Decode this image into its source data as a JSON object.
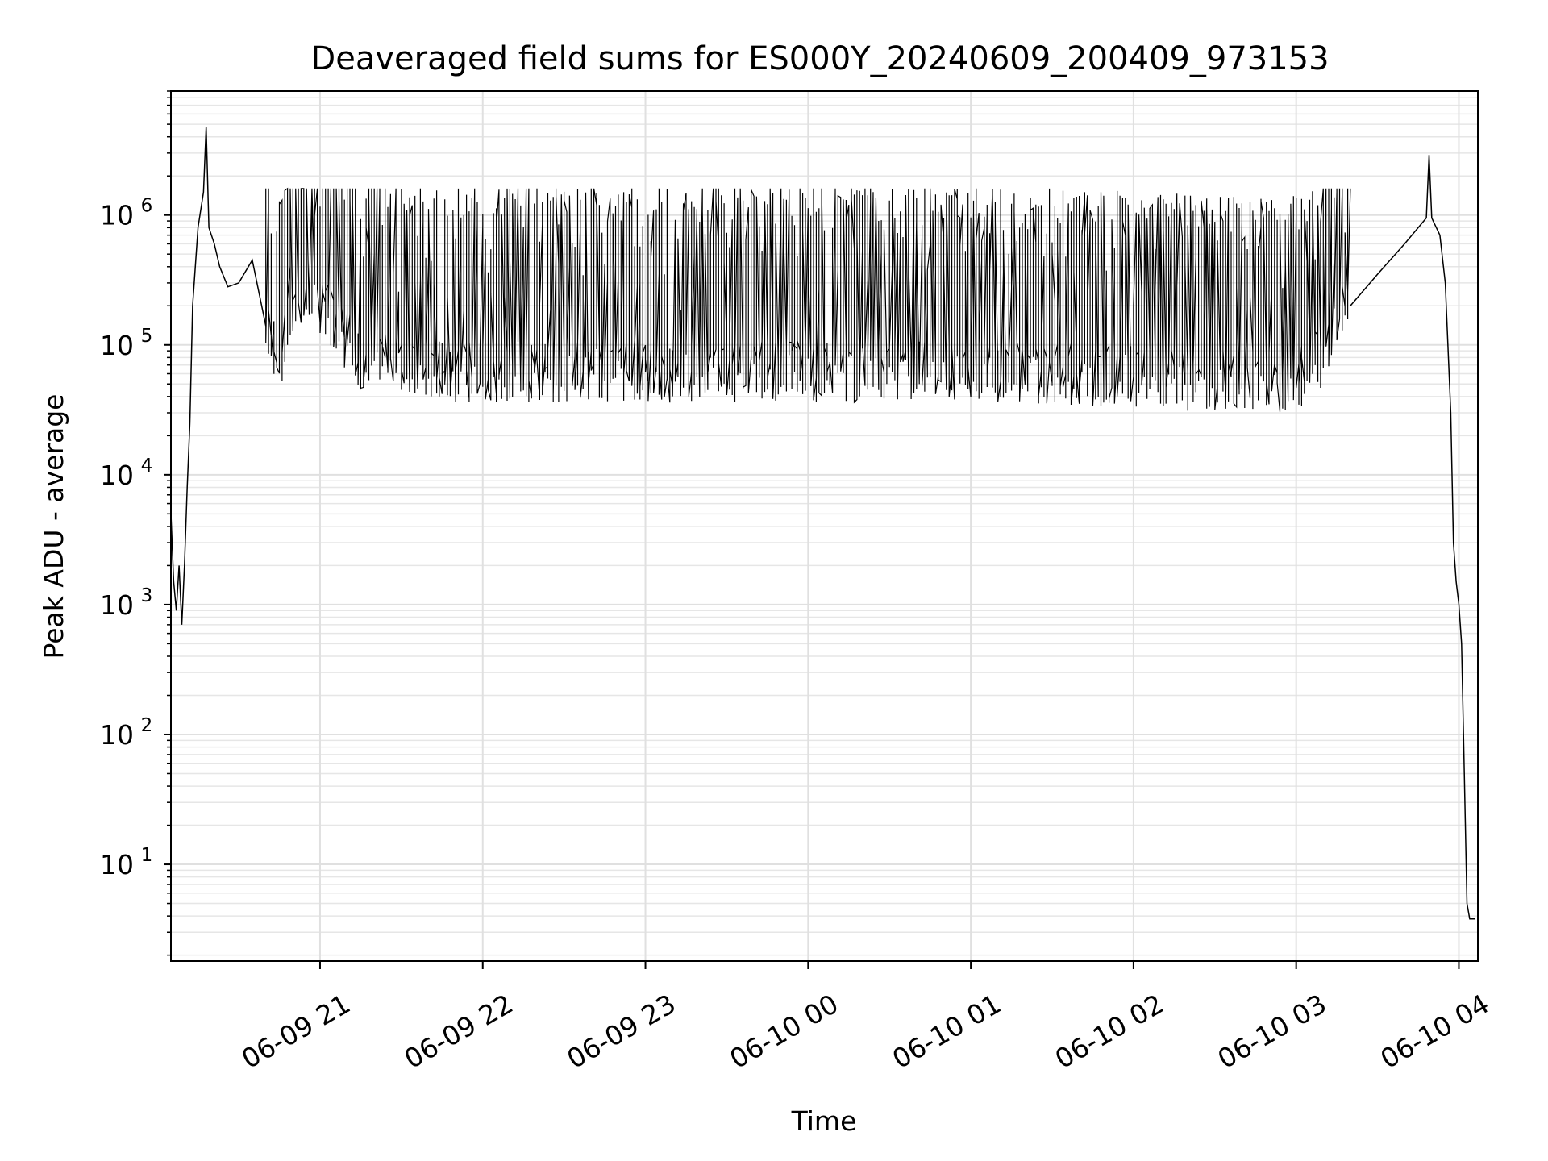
{
  "chart_data": {
    "type": "line",
    "title": "Deaveraged field sums for ES000Y_20240609_200409_973153",
    "xlabel": "Time",
    "ylabel": "Peak ADU - average",
    "xlim": [
      "2024-06-09 20:05",
      "2024-06-10 04:07"
    ],
    "ylim": [
      1.8,
      9000000
    ],
    "yscale": "log",
    "grid": true,
    "x_ticks": [
      {
        "value": "2024-06-09 21:00",
        "label": "06-09 21"
      },
      {
        "value": "2024-06-09 22:00",
        "label": "06-09 22"
      },
      {
        "value": "2024-06-09 23:00",
        "label": "06-09 23"
      },
      {
        "value": "2024-06-10 00:00",
        "label": "06-10 00"
      },
      {
        "value": "2024-06-10 01:00",
        "label": "06-10 01"
      },
      {
        "value": "2024-06-10 02:00",
        "label": "06-10 02"
      },
      {
        "value": "2024-06-10 03:00",
        "label": "06-10 03"
      },
      {
        "value": "2024-06-10 04:00",
        "label": "06-10 04"
      }
    ],
    "y_ticks": [
      {
        "value": 10,
        "base": "10",
        "exp": "1"
      },
      {
        "value": 100,
        "base": "10",
        "exp": "2"
      },
      {
        "value": 1000,
        "base": "10",
        "exp": "3"
      },
      {
        "value": 10000,
        "base": "10",
        "exp": "4"
      },
      {
        "value": 100000,
        "base": "10",
        "exp": "5"
      },
      {
        "value": 1000000,
        "base": "10",
        "exp": "6"
      }
    ],
    "series": [
      {
        "color": "#000000",
        "points": [
          [
            "2024-06-09 20:05",
            5000
          ],
          [
            "2024-06-09 20:06",
            1500
          ],
          [
            "2024-06-09 20:07",
            900
          ],
          [
            "2024-06-09 20:08",
            2000
          ],
          [
            "2024-06-09 20:09",
            700
          ],
          [
            "2024-06-09 20:10",
            2000
          ],
          [
            "2024-06-09 20:11",
            8000
          ],
          [
            "2024-06-09 20:12",
            25000
          ],
          [
            "2024-06-09 20:13",
            200000
          ],
          [
            "2024-06-09 20:15",
            800000
          ],
          [
            "2024-06-09 20:17",
            1500000
          ],
          [
            "2024-06-09 20:18",
            4800000
          ],
          [
            "2024-06-09 20:19",
            800000
          ],
          [
            "2024-06-09 20:21",
            600000
          ],
          [
            "2024-06-09 20:23",
            400000
          ],
          [
            "2024-06-09 20:26",
            280000
          ],
          [
            "2024-06-09 20:30",
            300000
          ],
          [
            "2024-06-09 20:35",
            450000
          ],
          [
            "2024-06-09 20:40",
            140000
          ],
          [
            "2024-06-09 20:45",
            70000
          ],
          [
            "2024-06-09 20:50",
            150000
          ],
          [
            "2024-06-09 21:00",
            200000
          ],
          [
            "2024-06-09 21:15",
            75000
          ],
          [
            "2024-06-09 21:30",
            70000
          ],
          [
            "2024-06-09 21:45",
            60000
          ],
          [
            "2024-06-09 22:00",
            60000
          ],
          [
            "2024-06-09 22:30",
            60000
          ],
          [
            "2024-06-09 23:00",
            60000
          ],
          [
            "2024-06-10 00:00",
            60000
          ],
          [
            "2024-06-10 01:00",
            60000
          ],
          [
            "2024-06-10 02:00",
            55000
          ],
          [
            "2024-06-10 02:30",
            50000
          ],
          [
            "2024-06-10 03:00",
            50000
          ],
          [
            "2024-06-10 03:10",
            80000
          ],
          [
            "2024-06-10 03:20",
            200000
          ],
          [
            "2024-06-10 03:30",
            350000
          ],
          [
            "2024-06-10 03:40",
            600000
          ],
          [
            "2024-06-10 03:48",
            950000
          ],
          [
            "2024-06-10 03:49",
            2900000
          ],
          [
            "2024-06-10 03:50",
            950000
          ],
          [
            "2024-06-10 03:53",
            700000
          ],
          [
            "2024-06-10 03:55",
            300000
          ],
          [
            "2024-06-10 03:57",
            30000
          ],
          [
            "2024-06-10 03:58",
            3000
          ],
          [
            "2024-06-10 03:59",
            1500
          ],
          [
            "2024-06-10 04:00",
            1000
          ],
          [
            "2024-06-10 04:01",
            500
          ],
          [
            "2024-06-10 04:02",
            50
          ],
          [
            "2024-06-10 04:03",
            5
          ],
          [
            "2024-06-10 04:04",
            3.8
          ],
          [
            "2024-06-10 04:06",
            3.8
          ]
        ],
        "noise_band": {
          "start": "2024-06-09 20:40",
          "end": "2024-06-10 03:20",
          "high": 1600000
        }
      }
    ]
  }
}
